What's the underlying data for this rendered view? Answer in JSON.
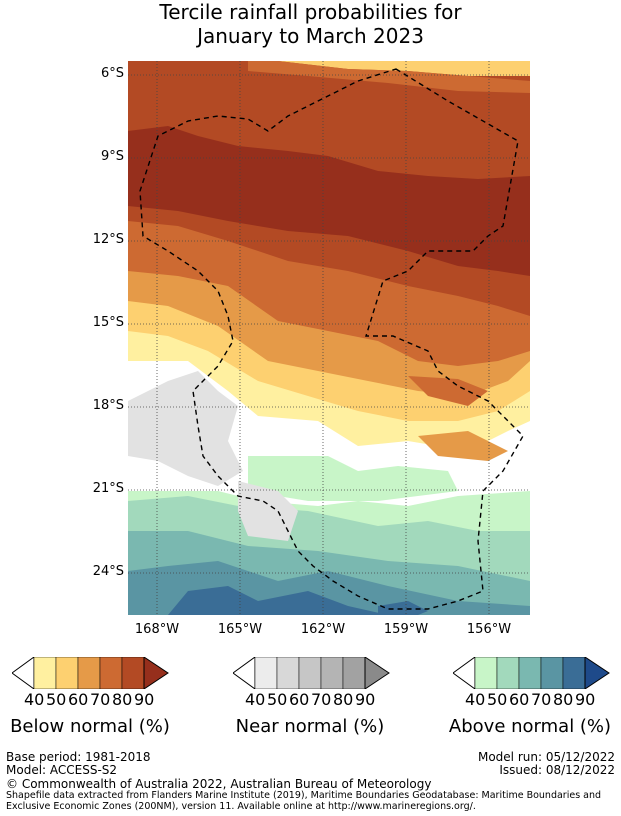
{
  "title_line1": "Tercile rainfall probabilities for",
  "title_line2": "January to March 2023",
  "lat_labels": [
    "6°S",
    "9°S",
    "12°S",
    "15°S",
    "18°S",
    "21°S",
    "24°S"
  ],
  "lon_labels": [
    "168°W",
    "165°W",
    "162°W",
    "159°W",
    "156°W"
  ],
  "colorbars": {
    "below": {
      "title": "Below normal (%)",
      "ticks": [
        "40",
        "50",
        "60",
        "70",
        "80",
        "90"
      ],
      "colors": [
        "#fff0a0",
        "#fdd070",
        "#e59a48",
        "#cd6a32",
        "#b34a24",
        "#962f1c"
      ]
    },
    "near": {
      "title": "Near normal (%)",
      "ticks": [
        "40",
        "50",
        "60",
        "70",
        "80",
        "90"
      ],
      "colors": [
        "#ececec",
        "#d8d8d8",
        "#c6c6c6",
        "#b4b4b4",
        "#a2a2a2",
        "#8a8a8a"
      ]
    },
    "above": {
      "title": "Above normal (%)",
      "ticks": [
        "40",
        "50",
        "60",
        "70",
        "80",
        "90"
      ],
      "colors": [
        "#c8f5c8",
        "#a2d9bc",
        "#7ab8b0",
        "#5a95a3",
        "#3a6d96",
        "#1e4a8a"
      ]
    }
  },
  "footer": {
    "base_period": "Base period: 1981-2018",
    "model": "Model: ACCESS-S2",
    "model_run": "Model run: 05/12/2022",
    "issued": "Issued: 08/12/2022",
    "copyright": "© Commonwealth of Australia 2022, Australian Bureau of Meteorology",
    "shapefile_line1": "Shapefile data extracted from Flanders Marine Institute (2019), Maritime Boundaries Geodatabase: Maritime Boundaries and",
    "shapefile_line2": "Exclusive Economic Zones (200NM), version 11. Available online at http://www.marineregions.org/."
  }
}
